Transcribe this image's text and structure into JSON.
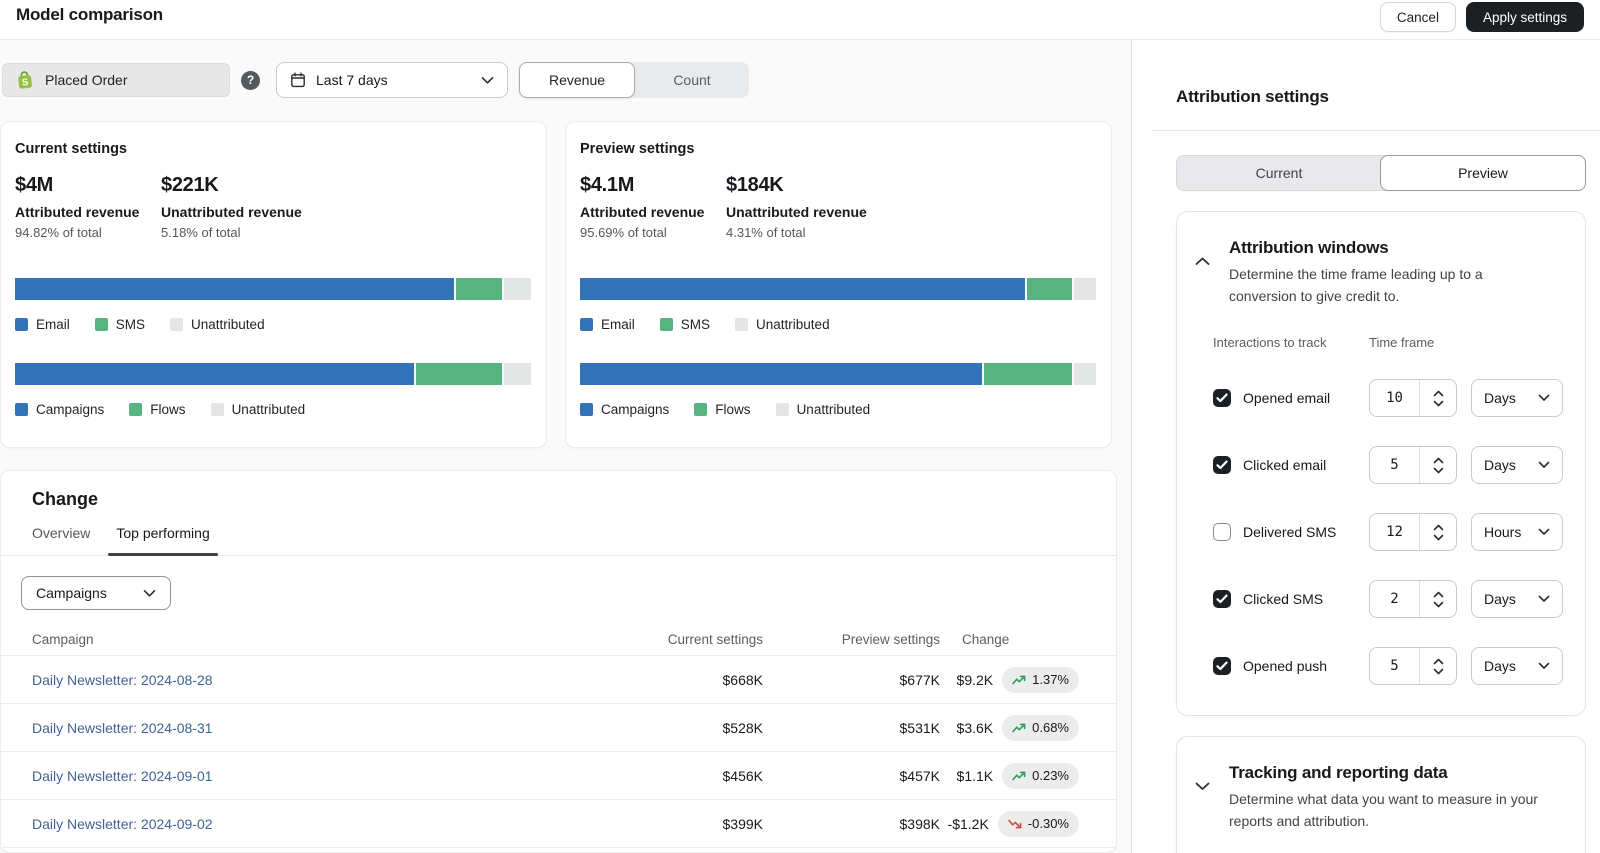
{
  "topbar": {
    "title": "Model comparison",
    "cancel_label": "Cancel",
    "apply_label": "Apply settings"
  },
  "filters": {
    "metric_chip": "Placed Order",
    "help_glyph": "?",
    "date_range": "Last 7 days",
    "toggle": [
      "Revenue",
      "Count"
    ],
    "toggle_active": "Revenue"
  },
  "colors": {
    "series": [
      "#3273BA",
      "#57B481",
      "#E4E6E6"
    ],
    "accent_dark": "#1D2023",
    "link": "#3D6494",
    "trend_up": "#2E9E5B",
    "trend_down": "#CC4B45",
    "shopify_green": "#95BF47"
  },
  "icons": {
    "metric_chip": "shopify-bag-icon",
    "date": "calendar-icon",
    "help": "question-circle-icon",
    "selects": "chevron-down-icon",
    "positive": "trend-up-icon",
    "negative": "trend-down-icon"
  },
  "cards": [
    {
      "title": "Current settings",
      "metrics": [
        {
          "value": "$4M",
          "label": "Attributed revenue",
          "share": "94.82% of total"
        },
        {
          "value": "$221K",
          "label": "Unattributed revenue",
          "share": "5.18% of total"
        }
      ],
      "bars": [
        {
          "labels": [
            "Email",
            "SMS",
            "Unattributed"
          ],
          "pcts": [
            85.8,
            9.0,
            5.2
          ]
        },
        {
          "labels": [
            "Campaigns",
            "Flows",
            "Unattributed"
          ],
          "pcts": [
            77.9,
            16.9,
            5.2
          ]
        }
      ]
    },
    {
      "title": "Preview settings",
      "metrics": [
        {
          "value": "$4.1M",
          "label": "Attributed revenue",
          "share": "95.69% of total"
        },
        {
          "value": "$184K",
          "label": "Unattributed revenue",
          "share": "4.31% of total"
        }
      ],
      "bars": [
        {
          "labels": [
            "Email",
            "SMS",
            "Unattributed"
          ],
          "pcts": [
            87.0,
            8.7,
            4.3
          ]
        },
        {
          "labels": [
            "Campaigns",
            "Flows",
            "Unattributed"
          ],
          "pcts": [
            78.6,
            17.1,
            4.3
          ]
        }
      ]
    }
  ],
  "change": {
    "title": "Change",
    "tabs": [
      "Overview",
      "Top performing"
    ],
    "active_tab": "Top performing",
    "group_select": "Campaigns",
    "table": {
      "columns": [
        "Campaign",
        "Current settings",
        "Preview settings",
        "Change"
      ],
      "rows": [
        {
          "campaign": "Daily Newsletter: 2024-08-28",
          "current": "$668K",
          "preview": "$677K",
          "delta": "$9.2K",
          "pct": "1.37%",
          "direction": "up"
        },
        {
          "campaign": "Daily Newsletter: 2024-08-31",
          "current": "$528K",
          "preview": "$531K",
          "delta": "$3.6K",
          "pct": "0.68%",
          "direction": "up"
        },
        {
          "campaign": "Daily Newsletter: 2024-09-01",
          "current": "$456K",
          "preview": "$457K",
          "delta": "$1.1K",
          "pct": "0.23%",
          "direction": "up"
        },
        {
          "campaign": "Daily Newsletter: 2024-09-02",
          "current": "$399K",
          "preview": "$398K",
          "delta": "-$1.2K",
          "pct": "-0.30%",
          "direction": "down"
        }
      ]
    }
  },
  "panel": {
    "title": "Attribution settings",
    "toggle": [
      "Current",
      "Preview"
    ],
    "toggle_active": "Preview",
    "sections": [
      {
        "title": "Attribution windows",
        "description": "Determine the time frame leading up to a conversion to give credit to.",
        "expanded": true,
        "col_interactions": "Interactions to track",
        "col_timeframe": "Time frame",
        "rows": [
          {
            "label": "Opened email",
            "checked": true,
            "value": "10",
            "unit": "Days"
          },
          {
            "label": "Clicked email",
            "checked": true,
            "value": "5",
            "unit": "Days"
          },
          {
            "label": "Delivered SMS",
            "checked": false,
            "value": "12",
            "unit": "Hours"
          },
          {
            "label": "Clicked SMS",
            "checked": true,
            "value": "2",
            "unit": "Days"
          },
          {
            "label": "Opened push",
            "checked": true,
            "value": "5",
            "unit": "Days"
          }
        ]
      },
      {
        "title": "Tracking and reporting data",
        "description": "Determine what data you want to measure in your reports and attribution.",
        "expanded": false
      }
    ]
  }
}
